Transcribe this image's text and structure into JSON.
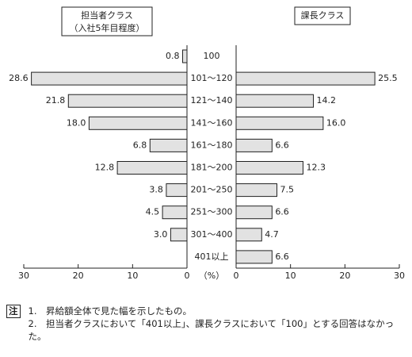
{
  "chart_data": {
    "type": "bar",
    "categories": [
      "100",
      "101〜120",
      "121〜140",
      "141〜160",
      "161〜180",
      "181〜200",
      "201〜250",
      "251〜300",
      "301〜400",
      "401以上"
    ],
    "series": [
      {
        "name": "担当者クラス",
        "subtitle": "（入社5年目程度）",
        "color": "#e2e2e2",
        "values": [
          0.8,
          28.6,
          21.8,
          18.0,
          6.8,
          12.8,
          3.8,
          4.5,
          3.0,
          null
        ],
        "value_labels": [
          "0.8",
          "28.6",
          "21.8",
          "18.0",
          "6.8",
          "12.8",
          "3.8",
          "4.5",
          "3.0",
          null
        ]
      },
      {
        "name": "課長クラス",
        "color": "#e2e2e2",
        "values": [
          null,
          25.5,
          14.2,
          16.0,
          6.6,
          12.3,
          7.5,
          6.6,
          4.7,
          6.6
        ],
        "value_labels": [
          null,
          "25.5",
          "14.2",
          "16.0",
          "6.6",
          "12.3",
          "7.5",
          "6.6",
          "4.7",
          "6.6"
        ]
      }
    ],
    "x_label": "（%）",
    "xlim": [
      0,
      30
    ],
    "xticks": [
      0,
      10,
      20,
      30
    ],
    "notes": {
      "marker": "注",
      "items": [
        "1.　昇給額全体で見た幅を示したもの。",
        "2.　担当者クラスにおいて「401以上」、課長クラスにおいて「100」とする回答はなかった。"
      ]
    }
  }
}
